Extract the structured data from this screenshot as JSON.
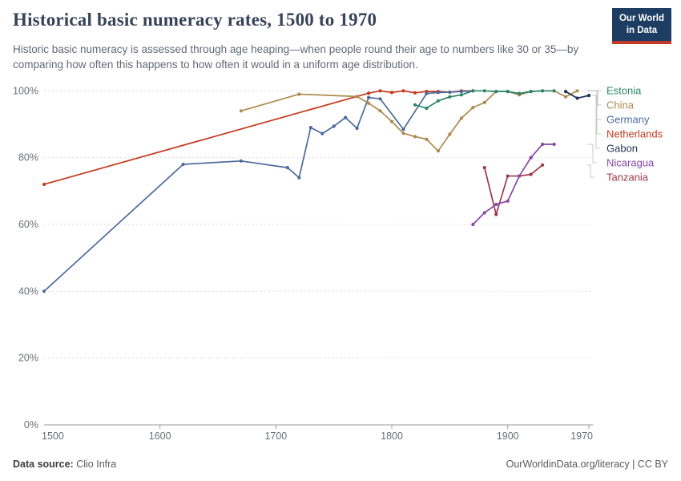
{
  "header": {
    "title": "Historical basic numeracy rates, 1500 to 1970",
    "subtitle": "Historic basic numeracy is assessed through age heaping—when people round their age to numbers like 30 or 35—by comparing how often this happens to how often it would in a uniform age distribution.",
    "logo": {
      "line1": "Our World",
      "line2": "in Data",
      "bg": "#1d3d63",
      "accent": "#c0392b"
    }
  },
  "footer": {
    "source_label": "Data source:",
    "source_value": "Clio Infra",
    "right": "OurWorldinData.org/literacy | CC BY"
  },
  "chart_data": {
    "type": "line",
    "title": "Historical basic numeracy rates, 1500 to 1970",
    "xlabel": "",
    "ylabel": "",
    "xlim": [
      1500,
      1970
    ],
    "ylim": [
      0,
      100
    ],
    "grid": true,
    "legend_position": "right",
    "grid_color": "#dcdcdc",
    "axis_color": "#999999",
    "connector_color": "#c8c8c8",
    "x_axis": {
      "ticks": [
        {
          "value": 1500,
          "label": "1500"
        },
        {
          "value": 1600,
          "label": "1600"
        },
        {
          "value": 1700,
          "label": "1700"
        },
        {
          "value": 1800,
          "label": "1800"
        },
        {
          "value": 1900,
          "label": "1900"
        },
        {
          "value": 1970,
          "label": "1970"
        }
      ]
    },
    "y_axis": {
      "ticks": [
        {
          "value": 0,
          "label": "0%"
        },
        {
          "value": 20,
          "label": "20%"
        },
        {
          "value": 40,
          "label": "40%"
        },
        {
          "value": 60,
          "label": "60%"
        },
        {
          "value": 80,
          "label": "80%"
        },
        {
          "value": 100,
          "label": "100%"
        }
      ]
    },
    "series": [
      {
        "name": "Estonia",
        "color": "#2c8465",
        "points": [
          [
            1820,
            95.8
          ],
          [
            1830,
            94.8
          ],
          [
            1840,
            97
          ],
          [
            1850,
            98.2
          ],
          [
            1860,
            98.8
          ],
          [
            1870,
            100
          ],
          [
            1880,
            100
          ],
          [
            1890,
            99.8
          ],
          [
            1900,
            99.8
          ],
          [
            1910,
            99.2
          ],
          [
            1920,
            99.8
          ],
          [
            1930,
            100
          ],
          [
            1940,
            100
          ]
        ]
      },
      {
        "name": "China",
        "color": "#ae8a4f",
        "points": [
          [
            1670,
            94
          ],
          [
            1720,
            99
          ],
          [
            1770,
            98.3
          ],
          [
            1780,
            96.3
          ],
          [
            1790,
            94
          ],
          [
            1800,
            90.8
          ],
          [
            1810,
            87.3
          ],
          [
            1820,
            86.3
          ],
          [
            1830,
            85.5
          ],
          [
            1840,
            82
          ],
          [
            1850,
            87
          ],
          [
            1860,
            91.8
          ],
          [
            1870,
            95
          ],
          [
            1880,
            96.5
          ],
          [
            1890,
            99.8
          ],
          [
            1900,
            99.8
          ],
          [
            1910,
            98.8
          ],
          [
            1920,
            99.8
          ],
          [
            1930,
            100
          ],
          [
            1940,
            100
          ],
          [
            1950,
            98.2
          ],
          [
            1960,
            100
          ]
        ]
      },
      {
        "name": "Germany",
        "color": "#4c6a9c",
        "points": [
          [
            1500,
            40
          ],
          [
            1620,
            78
          ],
          [
            1670,
            79
          ],
          [
            1710,
            77
          ],
          [
            1720,
            74
          ],
          [
            1730,
            89
          ],
          [
            1740,
            87.2
          ],
          [
            1750,
            89.4
          ],
          [
            1760,
            92
          ],
          [
            1770,
            88.8
          ],
          [
            1780,
            98
          ],
          [
            1790,
            97.6
          ],
          [
            1810,
            88.5
          ],
          [
            1830,
            99.2
          ],
          [
            1840,
            99.5
          ],
          [
            1850,
            99.6
          ],
          [
            1860,
            99.8
          ],
          [
            1870,
            100
          ]
        ]
      },
      {
        "name": "Netherlands",
        "color": "#c4391d",
        "points": [
          [
            1500,
            72
          ],
          [
            1780,
            99.3
          ],
          [
            1790,
            100
          ],
          [
            1800,
            99.5
          ],
          [
            1810,
            100
          ],
          [
            1820,
            99.4
          ],
          [
            1830,
            99.8
          ],
          [
            1840,
            99.8
          ],
          [
            1850,
            99.6
          ],
          [
            1860,
            100
          ],
          [
            1870,
            100
          ]
        ]
      },
      {
        "name": "Gabon",
        "color": "#1d3156",
        "points": [
          [
            1950,
            99.8
          ],
          [
            1960,
            97.8
          ],
          [
            1970,
            98.6
          ]
        ]
      },
      {
        "name": "Nicaragua",
        "color": "#8846a9",
        "points": [
          [
            1870,
            60
          ],
          [
            1880,
            63.5
          ],
          [
            1890,
            66
          ],
          [
            1900,
            67
          ],
          [
            1910,
            74.5
          ],
          [
            1920,
            80
          ],
          [
            1930,
            84
          ],
          [
            1940,
            84
          ]
        ]
      },
      {
        "name": "Tanzania",
        "color": "#9c3848",
        "points": [
          [
            1880,
            77
          ],
          [
            1890,
            63
          ],
          [
            1900,
            74.5
          ],
          [
            1910,
            74.5
          ],
          [
            1920,
            75
          ],
          [
            1930,
            77.8
          ]
        ]
      }
    ]
  }
}
